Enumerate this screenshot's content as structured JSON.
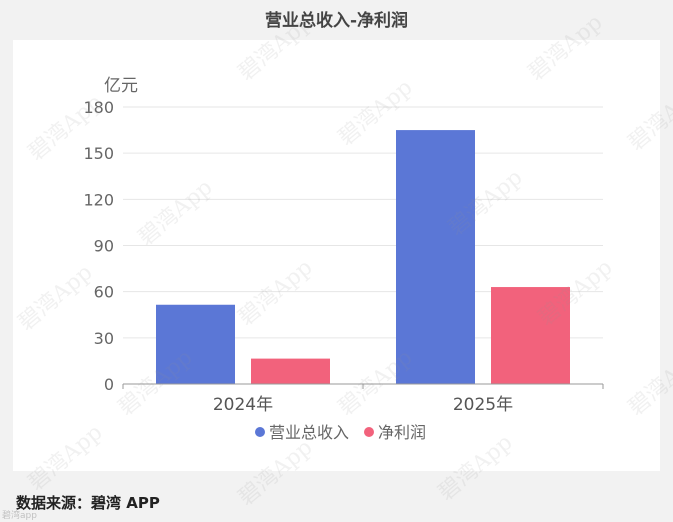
{
  "title": "营业总收入-净利润",
  "source": "数据来源：碧湾 APP",
  "watermark": "碧湾App",
  "bottom_tag": "碧湾app",
  "colors": {
    "revenue": "#5b77d6",
    "profit": "#f2627c",
    "grid": "#e6e6e6",
    "axis": "#999999",
    "text": "#666666"
  },
  "chart_data": {
    "type": "bar",
    "title": "营业总收入-净利润",
    "ylabel": "亿元",
    "xlabel": "",
    "categories": [
      "2024年",
      "2025年"
    ],
    "series": [
      {
        "name": "营业总收入",
        "values": [
          51.5,
          165.0
        ]
      },
      {
        "name": "净利润",
        "values": [
          16.5,
          63.0
        ]
      }
    ],
    "ylim": [
      0,
      180
    ],
    "yticks": [
      0,
      30,
      60,
      90,
      120,
      150,
      180
    ],
    "grid": true,
    "legend": "bottom-center"
  }
}
